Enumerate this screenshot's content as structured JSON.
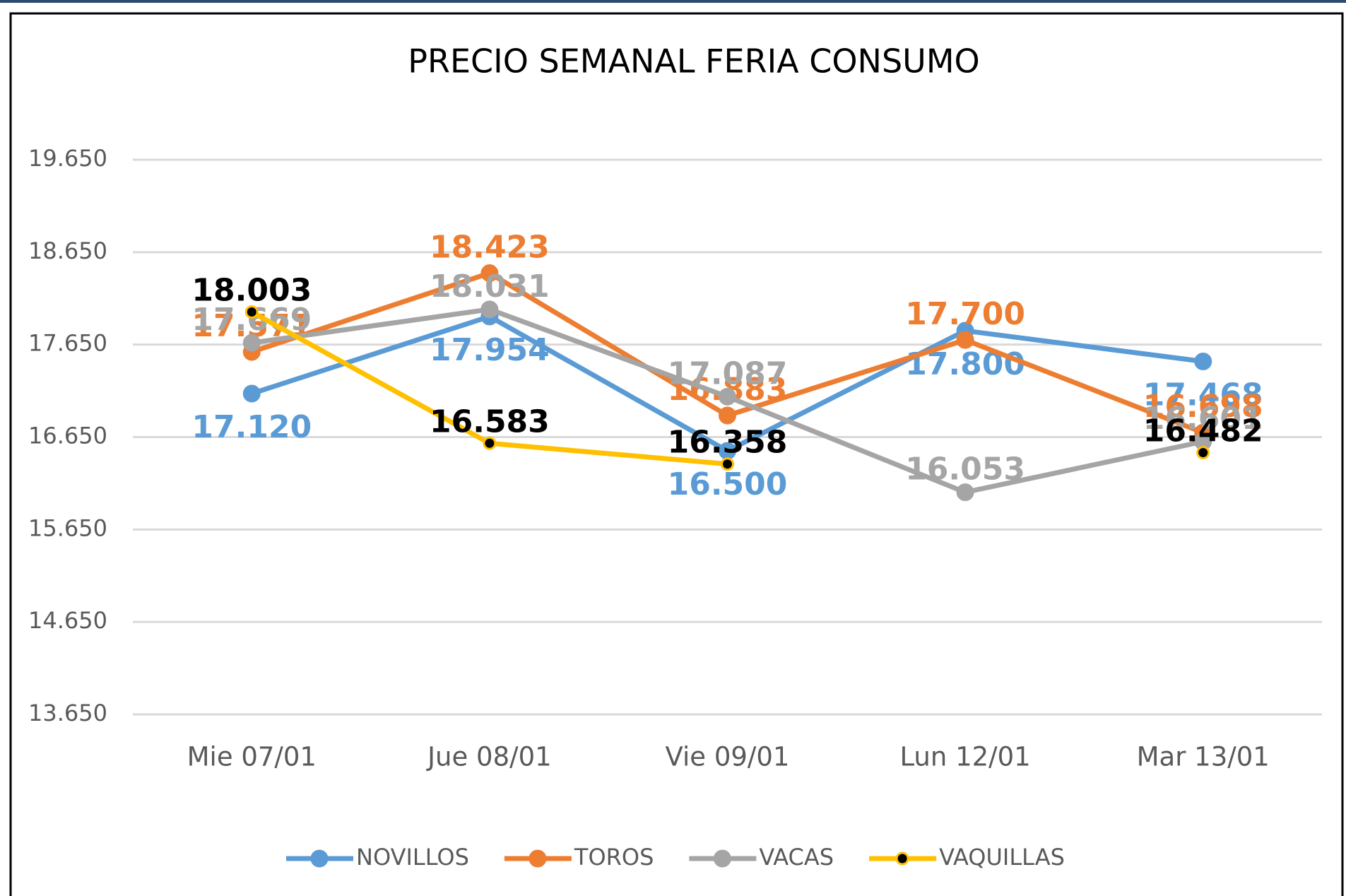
{
  "chart_data": {
    "type": "line",
    "title": "PRECIO SEMANAL FERIA CONSUMO",
    "categories": [
      "Mie 07/01",
      "Jue 08/01",
      "Vie 09/01",
      "Lun 12/01",
      "Mar 13/01"
    ],
    "series": [
      {
        "name": "NOVILLOS",
        "color": "#5b9bd5",
        "marker_color": "#5b9bd5",
        "values": [
          17120,
          17954,
          16500,
          17800,
          17468
        ],
        "value_labels": [
          "17.120",
          "17.954",
          "16.500",
          "17.800",
          "17.468"
        ]
      },
      {
        "name": "TOROS",
        "color": "#ed7d31",
        "marker_color": "#ed7d31",
        "values": [
          17571,
          18423,
          16883,
          17700,
          16698
        ],
        "value_labels": [
          "17.571",
          "18.423",
          "16.883",
          "17.700",
          "16.698"
        ]
      },
      {
        "name": "VACAS",
        "color": "#a5a5a5",
        "marker_color": "#a5a5a5",
        "values": [
          17669,
          18031,
          17087,
          16053,
          16601
        ],
        "value_labels": [
          "17.669",
          "18.031",
          "17.087",
          "16.053",
          "16.601"
        ]
      },
      {
        "name": "VAQUILLAS",
        "color": "#ffc000",
        "marker_color": "#000000",
        "values": [
          18003,
          16583,
          16358,
          null,
          16482
        ],
        "value_labels": [
          "18.003",
          "16.583",
          "16.358",
          null,
          "16.482"
        ]
      }
    ],
    "ylim": [
      13650,
      19650
    ],
    "yticks": [
      {
        "value": 13650,
        "label": "13.650"
      },
      {
        "value": 14650,
        "label": "14.650"
      },
      {
        "value": 15650,
        "label": "15.650"
      },
      {
        "value": 16650,
        "label": "16.650"
      },
      {
        "value": 17650,
        "label": "17.650"
      },
      {
        "value": 18650,
        "label": "18.650"
      },
      {
        "value": 19650,
        "label": "19.650"
      }
    ],
    "grid": true,
    "legend": "bottom"
  }
}
